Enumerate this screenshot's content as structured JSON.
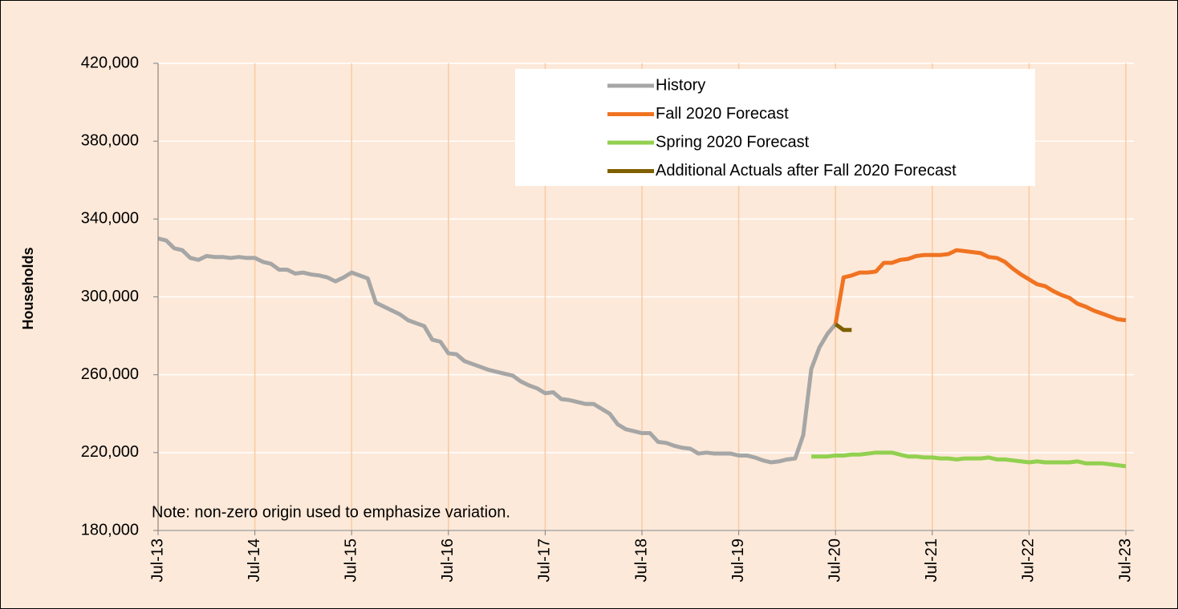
{
  "chart_data": {
    "type": "line",
    "y_label": "Households",
    "note": "Note: non-zero origin used to emphasize variation.",
    "categories": [
      "Jul-13",
      null,
      null,
      null,
      null,
      null,
      null,
      null,
      null,
      null,
      null,
      null,
      "Jul-14",
      null,
      null,
      null,
      null,
      null,
      null,
      null,
      null,
      null,
      null,
      null,
      "Jul-15",
      null,
      null,
      null,
      null,
      null,
      null,
      null,
      null,
      null,
      null,
      null,
      "Jul-16",
      null,
      null,
      null,
      null,
      null,
      null,
      null,
      null,
      null,
      null,
      null,
      "Jul-17",
      null,
      null,
      null,
      null,
      null,
      null,
      null,
      null,
      null,
      null,
      null,
      "Jul-18",
      null,
      null,
      null,
      null,
      null,
      null,
      null,
      null,
      null,
      null,
      null,
      "Jul-19",
      null,
      null,
      null,
      null,
      null,
      null,
      null,
      null,
      null,
      null,
      null,
      "Jul-20",
      null,
      null,
      null,
      null,
      null,
      null,
      null,
      null,
      null,
      null,
      null,
      "Jul-21",
      null,
      null,
      null,
      null,
      null,
      null,
      null,
      null,
      null,
      null,
      null,
      "Jul-22",
      null,
      null,
      null,
      null,
      null,
      null,
      null,
      null,
      null,
      null,
      null,
      "Jul-23"
    ],
    "ylim": [
      180000,
      420000
    ],
    "yticks": [
      {
        "value": 180000,
        "label": "180,000"
      },
      {
        "value": 220000,
        "label": "220,000"
      },
      {
        "value": 260000,
        "label": "260,000"
      },
      {
        "value": 300000,
        "label": "300,000"
      },
      {
        "value": 340000,
        "label": "340,000"
      },
      {
        "value": 380000,
        "label": "380,000"
      },
      {
        "value": 420000,
        "label": "420,000"
      }
    ],
    "grid": true,
    "legend": "top",
    "series": [
      {
        "name": "History",
        "color": "#a6a6a6",
        "values": [
          330000,
          329000,
          325000,
          324000,
          320000,
          319000,
          321000,
          320500,
          320500,
          320000,
          320500,
          320000,
          320000,
          318000,
          317000,
          314000,
          314000,
          312000,
          312500,
          311500,
          311000,
          310000,
          308000,
          310000,
          312500,
          311000,
          309500,
          297000,
          295000,
          293000,
          291000,
          288000,
          286500,
          285000,
          278000,
          277000,
          271000,
          270500,
          267000,
          265500,
          264000,
          262500,
          261500,
          260500,
          259500,
          256500,
          254500,
          253000,
          250500,
          251000,
          247500,
          247000,
          246000,
          245000,
          245000,
          242500,
          240000,
          234500,
          232000,
          231000,
          230000,
          230000,
          225500,
          225000,
          223500,
          222500,
          222000,
          219500,
          220000,
          219500,
          219500,
          219500,
          218500,
          218500,
          217500,
          216000,
          215000,
          215500,
          216500,
          217000,
          229000,
          263000,
          274000,
          281000,
          286000,
          null,
          null,
          null,
          null,
          null,
          null,
          null,
          null,
          null,
          null,
          null,
          null,
          null,
          null,
          null,
          null,
          null,
          null,
          null,
          null,
          null,
          null,
          null,
          null,
          null,
          null,
          null,
          null,
          null,
          null,
          null,
          null,
          null,
          null,
          null,
          null
        ]
      },
      {
        "name": "Fall 2020 Forecast",
        "color": "#f07322",
        "values": [
          null,
          null,
          null,
          null,
          null,
          null,
          null,
          null,
          null,
          null,
          null,
          null,
          null,
          null,
          null,
          null,
          null,
          null,
          null,
          null,
          null,
          null,
          null,
          null,
          null,
          null,
          null,
          null,
          null,
          null,
          null,
          null,
          null,
          null,
          null,
          null,
          null,
          null,
          null,
          null,
          null,
          null,
          null,
          null,
          null,
          null,
          null,
          null,
          null,
          null,
          null,
          null,
          null,
          null,
          null,
          null,
          null,
          null,
          null,
          null,
          null,
          null,
          null,
          null,
          null,
          null,
          null,
          null,
          null,
          null,
          null,
          null,
          null,
          null,
          null,
          null,
          null,
          null,
          null,
          null,
          null,
          null,
          null,
          null,
          286000,
          310000,
          311000,
          312500,
          312500,
          313000,
          317500,
          317500,
          319000,
          319500,
          321000,
          321500,
          321500,
          321500,
          322000,
          324000,
          323500,
          323000,
          322500,
          320500,
          320000,
          318000,
          314500,
          311500,
          309000,
          306500,
          305500,
          303000,
          301000,
          299500,
          296500,
          295000,
          293000,
          291500,
          290000,
          288500,
          288000
        ]
      },
      {
        "name": "Spring 2020 Forecast",
        "color": "#92d050",
        "values": [
          null,
          null,
          null,
          null,
          null,
          null,
          null,
          null,
          null,
          null,
          null,
          null,
          null,
          null,
          null,
          null,
          null,
          null,
          null,
          null,
          null,
          null,
          null,
          null,
          null,
          null,
          null,
          null,
          null,
          null,
          null,
          null,
          null,
          null,
          null,
          null,
          null,
          null,
          null,
          null,
          null,
          null,
          null,
          null,
          null,
          null,
          null,
          null,
          null,
          null,
          null,
          null,
          null,
          null,
          null,
          null,
          null,
          null,
          null,
          null,
          null,
          null,
          null,
          null,
          null,
          null,
          null,
          null,
          null,
          null,
          null,
          null,
          null,
          null,
          null,
          null,
          null,
          null,
          null,
          null,
          null,
          218000,
          218000,
          218000,
          218500,
          218500,
          219000,
          219000,
          219500,
          220000,
          220000,
          220000,
          219000,
          218000,
          218000,
          217500,
          217500,
          217000,
          217000,
          216500,
          217000,
          217000,
          217000,
          217500,
          216500,
          216500,
          216000,
          215500,
          215000,
          215500,
          215000,
          215000,
          215000,
          215000,
          215500,
          214500,
          214500,
          214500,
          214000,
          213500,
          213000
        ]
      },
      {
        "name": "Additional Actuals after Fall 2020 Forecast",
        "color": "#7f6000",
        "values": [
          null,
          null,
          null,
          null,
          null,
          null,
          null,
          null,
          null,
          null,
          null,
          null,
          null,
          null,
          null,
          null,
          null,
          null,
          null,
          null,
          null,
          null,
          null,
          null,
          null,
          null,
          null,
          null,
          null,
          null,
          null,
          null,
          null,
          null,
          null,
          null,
          null,
          null,
          null,
          null,
          null,
          null,
          null,
          null,
          null,
          null,
          null,
          null,
          null,
          null,
          null,
          null,
          null,
          null,
          null,
          null,
          null,
          null,
          null,
          null,
          null,
          null,
          null,
          null,
          null,
          null,
          null,
          null,
          null,
          null,
          null,
          null,
          null,
          null,
          null,
          null,
          null,
          null,
          null,
          null,
          null,
          null,
          null,
          null,
          286000,
          283000,
          283000,
          null,
          null,
          null,
          null,
          null,
          null,
          null,
          null,
          null,
          null,
          null,
          null,
          null,
          null,
          null,
          null,
          null,
          null,
          null,
          null,
          null,
          null,
          null,
          null,
          null,
          null,
          null,
          null,
          null,
          null,
          null,
          null,
          null,
          null
        ]
      }
    ]
  }
}
